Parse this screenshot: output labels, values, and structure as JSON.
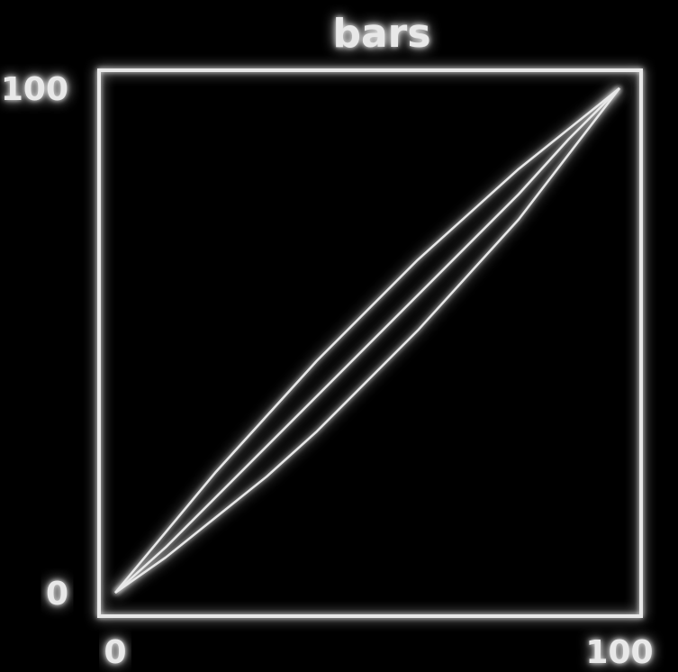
{
  "colors": {
    "background": "#000000",
    "foreground": "#e8e8e8"
  },
  "chart_data": {
    "type": "line",
    "title": "bars",
    "xlabel": "",
    "ylabel": "",
    "xlim": [
      0,
      100
    ],
    "ylim": [
      0,
      100
    ],
    "x_tick_labels": [
      "0",
      "",
      "",
      "",
      "",
      "100"
    ],
    "y_tick_labels": [
      "0",
      "",
      "",
      "",
      "",
      "100"
    ],
    "grid": false,
    "series": [
      {
        "x": [
          0,
          10,
          20,
          30,
          40,
          50,
          60,
          70,
          80,
          90,
          100
        ],
        "y": [
          0,
          12,
          24,
          35,
          46,
          56,
          66,
          75,
          84,
          92,
          100
        ]
      },
      {
        "x": [
          0,
          10,
          20,
          30,
          40,
          50,
          60,
          70,
          80,
          90,
          100
        ],
        "y": [
          0,
          9,
          19,
          29,
          39,
          49,
          59,
          69,
          79,
          90,
          100
        ]
      },
      {
        "x": [
          0,
          10,
          20,
          30,
          40,
          50,
          60,
          70,
          80,
          90,
          100
        ],
        "y": [
          0,
          7,
          15,
          23,
          32,
          42,
          52,
          63,
          74,
          87,
          100
        ]
      }
    ]
  }
}
